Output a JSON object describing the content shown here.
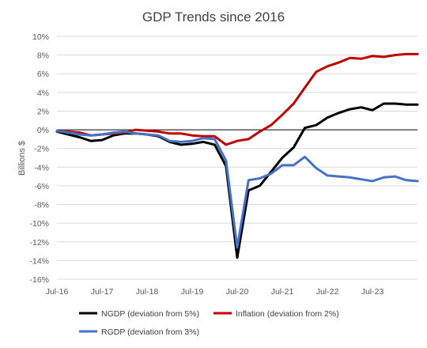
{
  "chart_data": {
    "type": "line",
    "title": "GDP Trends since 2016",
    "xlabel": "",
    "ylabel": "Billions $",
    "ylim": [
      -16,
      10
    ],
    "y_ticks": [
      10,
      8,
      6,
      4,
      2,
      0,
      -2,
      -4,
      -6,
      -8,
      -10,
      -12,
      -14,
      -16
    ],
    "y_tick_labels": [
      "10%",
      "8%",
      "6%",
      "4%",
      "2%",
      "0%",
      "-2%",
      "-4%",
      "-6%",
      "-8%",
      "-10%",
      "-12%",
      "-14%",
      "-16%"
    ],
    "x_tick_labels": [
      "Jul-16",
      "Jul-17",
      "Jul-18",
      "Jul-19",
      "Jul-20",
      "Jul-21",
      "Jul-22",
      "Jul-23"
    ],
    "grid": "horizontal",
    "legend_position": "bottom",
    "x_start": "Jul-16",
    "x_step": "quarter",
    "series": [
      {
        "name": "NGDP (deviation from 5%)",
        "color": "#000000",
        "values": [
          -0.2,
          -0.5,
          -0.8,
          -1.2,
          -1.1,
          -0.6,
          -0.4,
          -0.4,
          -0.5,
          -0.7,
          -1.3,
          -1.6,
          -1.5,
          -1.3,
          -1.6,
          -3.9,
          -13.7,
          -6.5,
          -6.0,
          -4.5,
          -3.0,
          -1.9,
          0.2,
          0.5,
          1.3,
          1.8,
          2.2,
          2.4,
          2.1,
          2.8,
          2.8,
          2.7,
          2.7
        ]
      },
      {
        "name": "Inflation (deviation from 2%)",
        "color": "#c00000",
        "values": [
          -0.2,
          -0.2,
          -0.3,
          -0.6,
          -0.5,
          -0.4,
          -0.3,
          0.0,
          -0.1,
          -0.2,
          -0.4,
          -0.4,
          -0.6,
          -0.7,
          -0.7,
          -1.6,
          -1.2,
          -1.0,
          -0.2,
          0.5,
          1.6,
          2.8,
          4.5,
          6.2,
          6.8,
          7.2,
          7.7,
          7.6,
          7.9,
          7.8,
          8.0,
          8.1,
          8.1
        ]
      },
      {
        "name": "RGDP (deviation from 3%)",
        "color": "#4472c4",
        "values": [
          -0.1,
          -0.3,
          -0.5,
          -0.6,
          -0.5,
          -0.3,
          -0.2,
          -0.4,
          -0.5,
          -0.6,
          -1.2,
          -1.3,
          -1.2,
          -0.9,
          -1.0,
          -3.3,
          -12.6,
          -5.4,
          -5.2,
          -4.7,
          -3.8,
          -3.8,
          -2.9,
          -4.1,
          -4.9,
          -5.0,
          -5.1,
          -5.3,
          -5.5,
          -5.1,
          -5.0,
          -5.4,
          -5.5
        ]
      }
    ]
  }
}
